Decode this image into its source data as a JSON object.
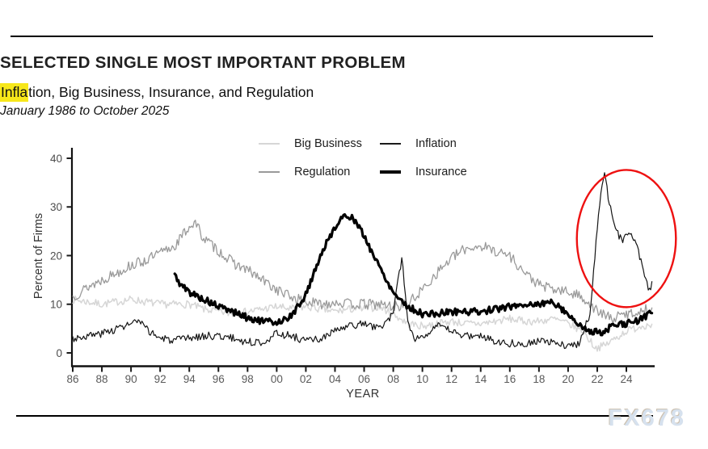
{
  "header": {
    "title": "SELECTED SINGLE MOST IMPORTANT PROBLEM",
    "subtitle_highlight": "Infla",
    "subtitle_rest": "tion, Big Business, Insurance, and Regulation",
    "date_range": "January 1986 to October 2025",
    "highlight_color": "#f7e71a"
  },
  "decorations": {
    "watermark": "FX678",
    "rule_color": "#000000"
  },
  "chart_data": {
    "type": "line",
    "title": "SELECTED SINGLE MOST IMPORTANT PROBLEM",
    "subtitle": "Inflation, Big Business, Insurance, and Regulation",
    "period": "January 1986 to October 2025",
    "xlabel": "YEAR",
    "ylabel": "Percent of Firms",
    "xlim": [
      1986.0,
      2025.83
    ],
    "ylim": [
      0,
      40
    ],
    "x_sampling": "monthly",
    "y_ticks": [
      0,
      10,
      20,
      30,
      40
    ],
    "x_tick_years": [
      1986,
      1988,
      1990,
      1992,
      1994,
      1996,
      1998,
      2000,
      2002,
      2004,
      2006,
      2008,
      2010,
      2012,
      2014,
      2016,
      2018,
      2020,
      2022,
      2024
    ],
    "x_tick_labels": [
      "86",
      "88",
      "90",
      "92",
      "94",
      "96",
      "98",
      "00",
      "02",
      "04",
      "06",
      "08",
      "10",
      "12",
      "14",
      "16",
      "18",
      "20",
      "22",
      "24"
    ],
    "grid": false,
    "legend_position": "top-center",
    "legend": [
      {
        "name": "Big Business",
        "color": "#d6d6d6",
        "thickness": 2.4
      },
      {
        "name": "Inflation",
        "color": "#1b1b1b",
        "thickness": 1.5
      },
      {
        "name": "Regulation",
        "color": "#9a9a9a",
        "thickness": 2.4
      },
      {
        "name": "Insurance",
        "color": "#000000",
        "thickness": 4
      }
    ],
    "series": [
      {
        "name": "Big Business",
        "color": "#d6d6d6",
        "width": 1.5,
        "noise": 0.8,
        "seed": 7,
        "anchors": [
          [
            1986,
            11
          ],
          [
            1987,
            10.5
          ],
          [
            1988,
            10
          ],
          [
            1989,
            10.5
          ],
          [
            1990,
            11
          ],
          [
            1991,
            10.5
          ],
          [
            1992,
            10
          ],
          [
            1993,
            10
          ],
          [
            1994,
            10
          ],
          [
            1995,
            9
          ],
          [
            1996,
            8.5
          ],
          [
            1997,
            8
          ],
          [
            1998,
            8.5
          ],
          [
            1999,
            9
          ],
          [
            2000,
            9.5
          ],
          [
            2001,
            9
          ],
          [
            2002,
            9.5
          ],
          [
            2003,
            9
          ],
          [
            2004,
            8.5
          ],
          [
            2005,
            9
          ],
          [
            2006,
            9
          ],
          [
            2007,
            9.5
          ],
          [
            2008,
            8
          ],
          [
            2009,
            6
          ],
          [
            2010,
            5.5
          ],
          [
            2011,
            6
          ],
          [
            2012,
            6.5
          ],
          [
            2013,
            6
          ],
          [
            2014,
            6
          ],
          [
            2015,
            6.5
          ],
          [
            2016,
            7
          ],
          [
            2017,
            6.5
          ],
          [
            2018,
            6.5
          ],
          [
            2019,
            7
          ],
          [
            2020,
            6
          ],
          [
            2021,
            4.5
          ],
          [
            2021.9,
            1
          ],
          [
            2022.5,
            1.5
          ],
          [
            2023,
            2.5
          ],
          [
            2024,
            4.5
          ],
          [
            2025,
            5.5
          ],
          [
            2025.75,
            6
          ]
        ]
      },
      {
        "name": "Regulation",
        "color": "#9a9a9a",
        "width": 1.3,
        "noise": 1.1,
        "seed": 13,
        "anchors": [
          [
            1986,
            11.5
          ],
          [
            1987,
            13.5
          ],
          [
            1988,
            15
          ],
          [
            1989,
            16.5
          ],
          [
            1990,
            18
          ],
          [
            1991,
            19
          ],
          [
            1992,
            20.5
          ],
          [
            1993,
            22
          ],
          [
            1994,
            26
          ],
          [
            1994.4,
            26.8
          ],
          [
            1995,
            23.5
          ],
          [
            1996,
            21
          ],
          [
            1997,
            18.5
          ],
          [
            1998,
            17
          ],
          [
            1999,
            15
          ],
          [
            2000,
            13
          ],
          [
            2001,
            11.5
          ],
          [
            2002,
            10.5
          ],
          [
            2003,
            10
          ],
          [
            2004,
            10.5
          ],
          [
            2005,
            10
          ],
          [
            2006,
            10
          ],
          [
            2007,
            10
          ],
          [
            2008,
            9.5
          ],
          [
            2009,
            10
          ],
          [
            2010,
            13
          ],
          [
            2011,
            16.5
          ],
          [
            2012,
            19.5
          ],
          [
            2013,
            21.5
          ],
          [
            2014,
            22
          ],
          [
            2015,
            21
          ],
          [
            2016,
            20
          ],
          [
            2017,
            16.5
          ],
          [
            2018,
            14
          ],
          [
            2019,
            13
          ],
          [
            2020,
            12.5
          ],
          [
            2021,
            11.5
          ],
          [
            2022,
            8.5
          ],
          [
            2023,
            7
          ],
          [
            2024,
            8
          ],
          [
            2025,
            8.5
          ],
          [
            2025.75,
            9.5
          ]
        ]
      },
      {
        "name": "Inflation",
        "color": "#141414",
        "width": 1.2,
        "noise": 0.8,
        "seed": 3,
        "anchors": [
          [
            1986,
            3
          ],
          [
            1987,
            3.5
          ],
          [
            1988,
            4
          ],
          [
            1989,
            5
          ],
          [
            1990.5,
            6.5
          ],
          [
            1991,
            5
          ],
          [
            1992,
            3
          ],
          [
            1993,
            2.5
          ],
          [
            1994,
            3
          ],
          [
            1995,
            3.5
          ],
          [
            1996,
            3.5
          ],
          [
            1997,
            3
          ],
          [
            1998,
            2.2
          ],
          [
            1999,
            2.2
          ],
          [
            2000,
            4
          ],
          [
            2001,
            3.5
          ],
          [
            2002,
            2.5
          ],
          [
            2003,
            2.8
          ],
          [
            2004,
            4.5
          ],
          [
            2005,
            5.5
          ],
          [
            2006,
            6
          ],
          [
            2007,
            5
          ],
          [
            2008,
            8
          ],
          [
            2008.6,
            20
          ],
          [
            2009,
            6
          ],
          [
            2009.5,
            3
          ],
          [
            2010,
            3.5
          ],
          [
            2011,
            5.5
          ],
          [
            2012,
            4.5
          ],
          [
            2013,
            3.5
          ],
          [
            2014,
            3.5
          ],
          [
            2015,
            2.5
          ],
          [
            2016,
            2
          ],
          [
            2017,
            2
          ],
          [
            2018,
            2.5
          ],
          [
            2019,
            2
          ],
          [
            2020,
            1.5
          ],
          [
            2020.8,
            2
          ],
          [
            2021.5,
            8
          ],
          [
            2022,
            26
          ],
          [
            2022.3,
            34
          ],
          [
            2022.5,
            37
          ],
          [
            2022.7,
            33
          ],
          [
            2022.9,
            30
          ],
          [
            2023.2,
            26
          ],
          [
            2023.5,
            24
          ],
          [
            2023.8,
            23
          ],
          [
            2024,
            24
          ],
          [
            2024.3,
            25
          ],
          [
            2024.6,
            23
          ],
          [
            2024.9,
            20
          ],
          [
            2025.2,
            17
          ],
          [
            2025.5,
            13
          ],
          [
            2025.75,
            14
          ]
        ]
      },
      {
        "name": "Insurance",
        "color": "#000000",
        "width": 3.2,
        "noise": 0.7,
        "seed": 5,
        "anchors": [
          [
            1993,
            16
          ],
          [
            1993.4,
            14
          ],
          [
            1994,
            12.5
          ],
          [
            1995,
            11
          ],
          [
            1996,
            9.5
          ],
          [
            1997,
            8.5
          ],
          [
            1998,
            7.2
          ],
          [
            1999,
            6.5
          ],
          [
            2000,
            6.3
          ],
          [
            2001,
            7.5
          ],
          [
            2002,
            12
          ],
          [
            2003,
            20
          ],
          [
            2004,
            26
          ],
          [
            2004.8,
            28.5
          ],
          [
            2005.3,
            27.5
          ],
          [
            2006,
            24
          ],
          [
            2007,
            18
          ],
          [
            2008,
            12.5
          ],
          [
            2009,
            9.5
          ],
          [
            2010,
            8
          ],
          [
            2011,
            8
          ],
          [
            2012,
            8.5
          ],
          [
            2013,
            8.5
          ],
          [
            2014,
            8.5
          ],
          [
            2015,
            9
          ],
          [
            2016,
            9.5
          ],
          [
            2017,
            10
          ],
          [
            2018,
            10
          ],
          [
            2019,
            10.5
          ],
          [
            2020,
            8
          ],
          [
            2021,
            5
          ],
          [
            2021.7,
            4.5
          ],
          [
            2022.3,
            4
          ],
          [
            2023,
            5.5
          ],
          [
            2024,
            6
          ],
          [
            2024.7,
            6.5
          ],
          [
            2025.3,
            7.5
          ],
          [
            2025.75,
            8.5
          ]
        ]
      }
    ],
    "annotation_ellipse": {
      "meaning": "circles the 2021-2025 inflation spike",
      "x_year": 2024.0,
      "y_value": 23.5,
      "rx_years": 3.4,
      "ry_value": 14.1,
      "color": "#ee1111",
      "stroke_width": 2.4
    },
    "axis": {
      "line_color": "#111111",
      "tick_color": "#1a1a1a",
      "tick_label_color": "#5a5a5a"
    }
  }
}
